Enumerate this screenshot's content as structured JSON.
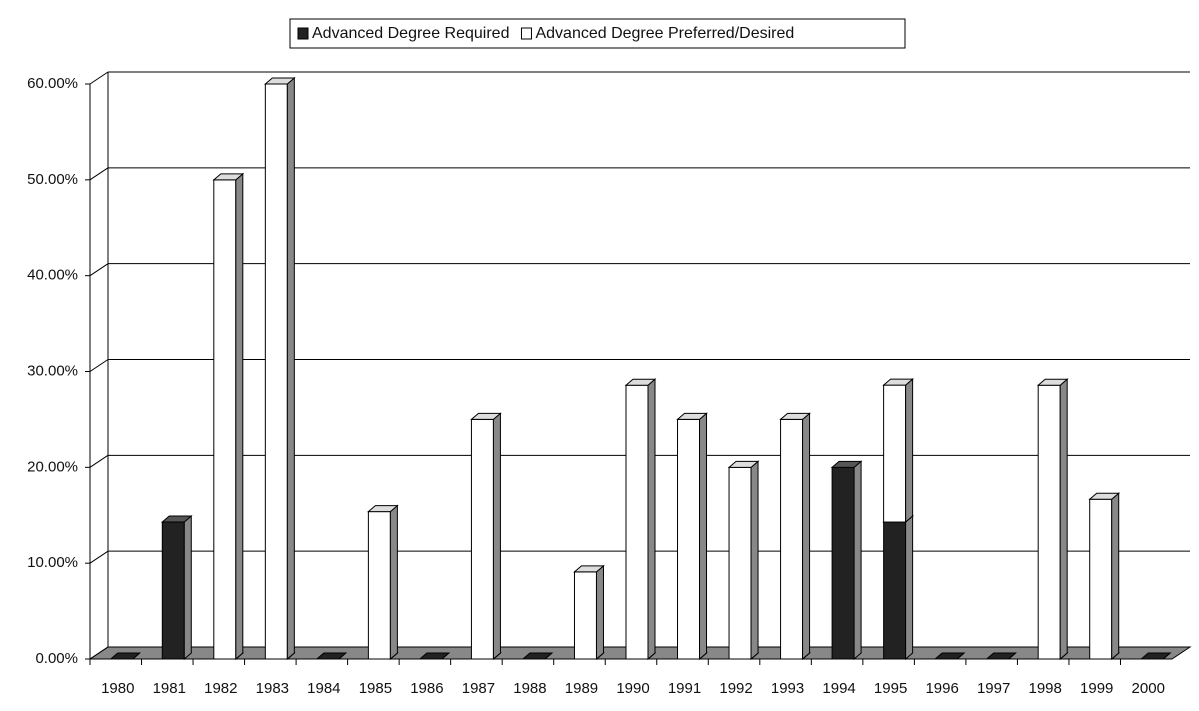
{
  "chart_data": {
    "type": "bar",
    "stacked": true,
    "categories": [
      "1980",
      "1981",
      "1982",
      "1983",
      "1984",
      "1985",
      "1986",
      "1987",
      "1988",
      "1989",
      "1990",
      "1991",
      "1992",
      "1993",
      "1994",
      "1995",
      "1996",
      "1997",
      "1998",
      "1999",
      "2000"
    ],
    "series": [
      {
        "name": "Advanced Degree Required",
        "color": "#222222",
        "values": [
          0,
          14.29,
          0,
          0,
          0,
          0,
          0,
          0,
          0,
          0,
          0,
          0,
          0,
          0,
          20,
          14.29,
          0,
          0,
          0,
          0,
          0
        ]
      },
      {
        "name": "Advanced Degree Preferred/Desired",
        "color": "#ffffff",
        "values": [
          0,
          0,
          50,
          60,
          0,
          15.38,
          0,
          25,
          0,
          9.09,
          28.57,
          25,
          20,
          25,
          0,
          14.29,
          0,
          0,
          28.57,
          16.67,
          0
        ]
      }
    ],
    "ylim": [
      0,
      60
    ],
    "yticks": [
      {
        "value": 0,
        "label": "0.00%"
      },
      {
        "value": 10,
        "label": "10.00%"
      },
      {
        "value": 20,
        "label": "20.00%"
      },
      {
        "value": 30,
        "label": "30.00%"
      },
      {
        "value": 40,
        "label": "40.00%"
      },
      {
        "value": 50,
        "label": "50.00%"
      },
      {
        "value": 60,
        "label": "60.00%"
      }
    ],
    "grid": true,
    "legend": "top"
  }
}
